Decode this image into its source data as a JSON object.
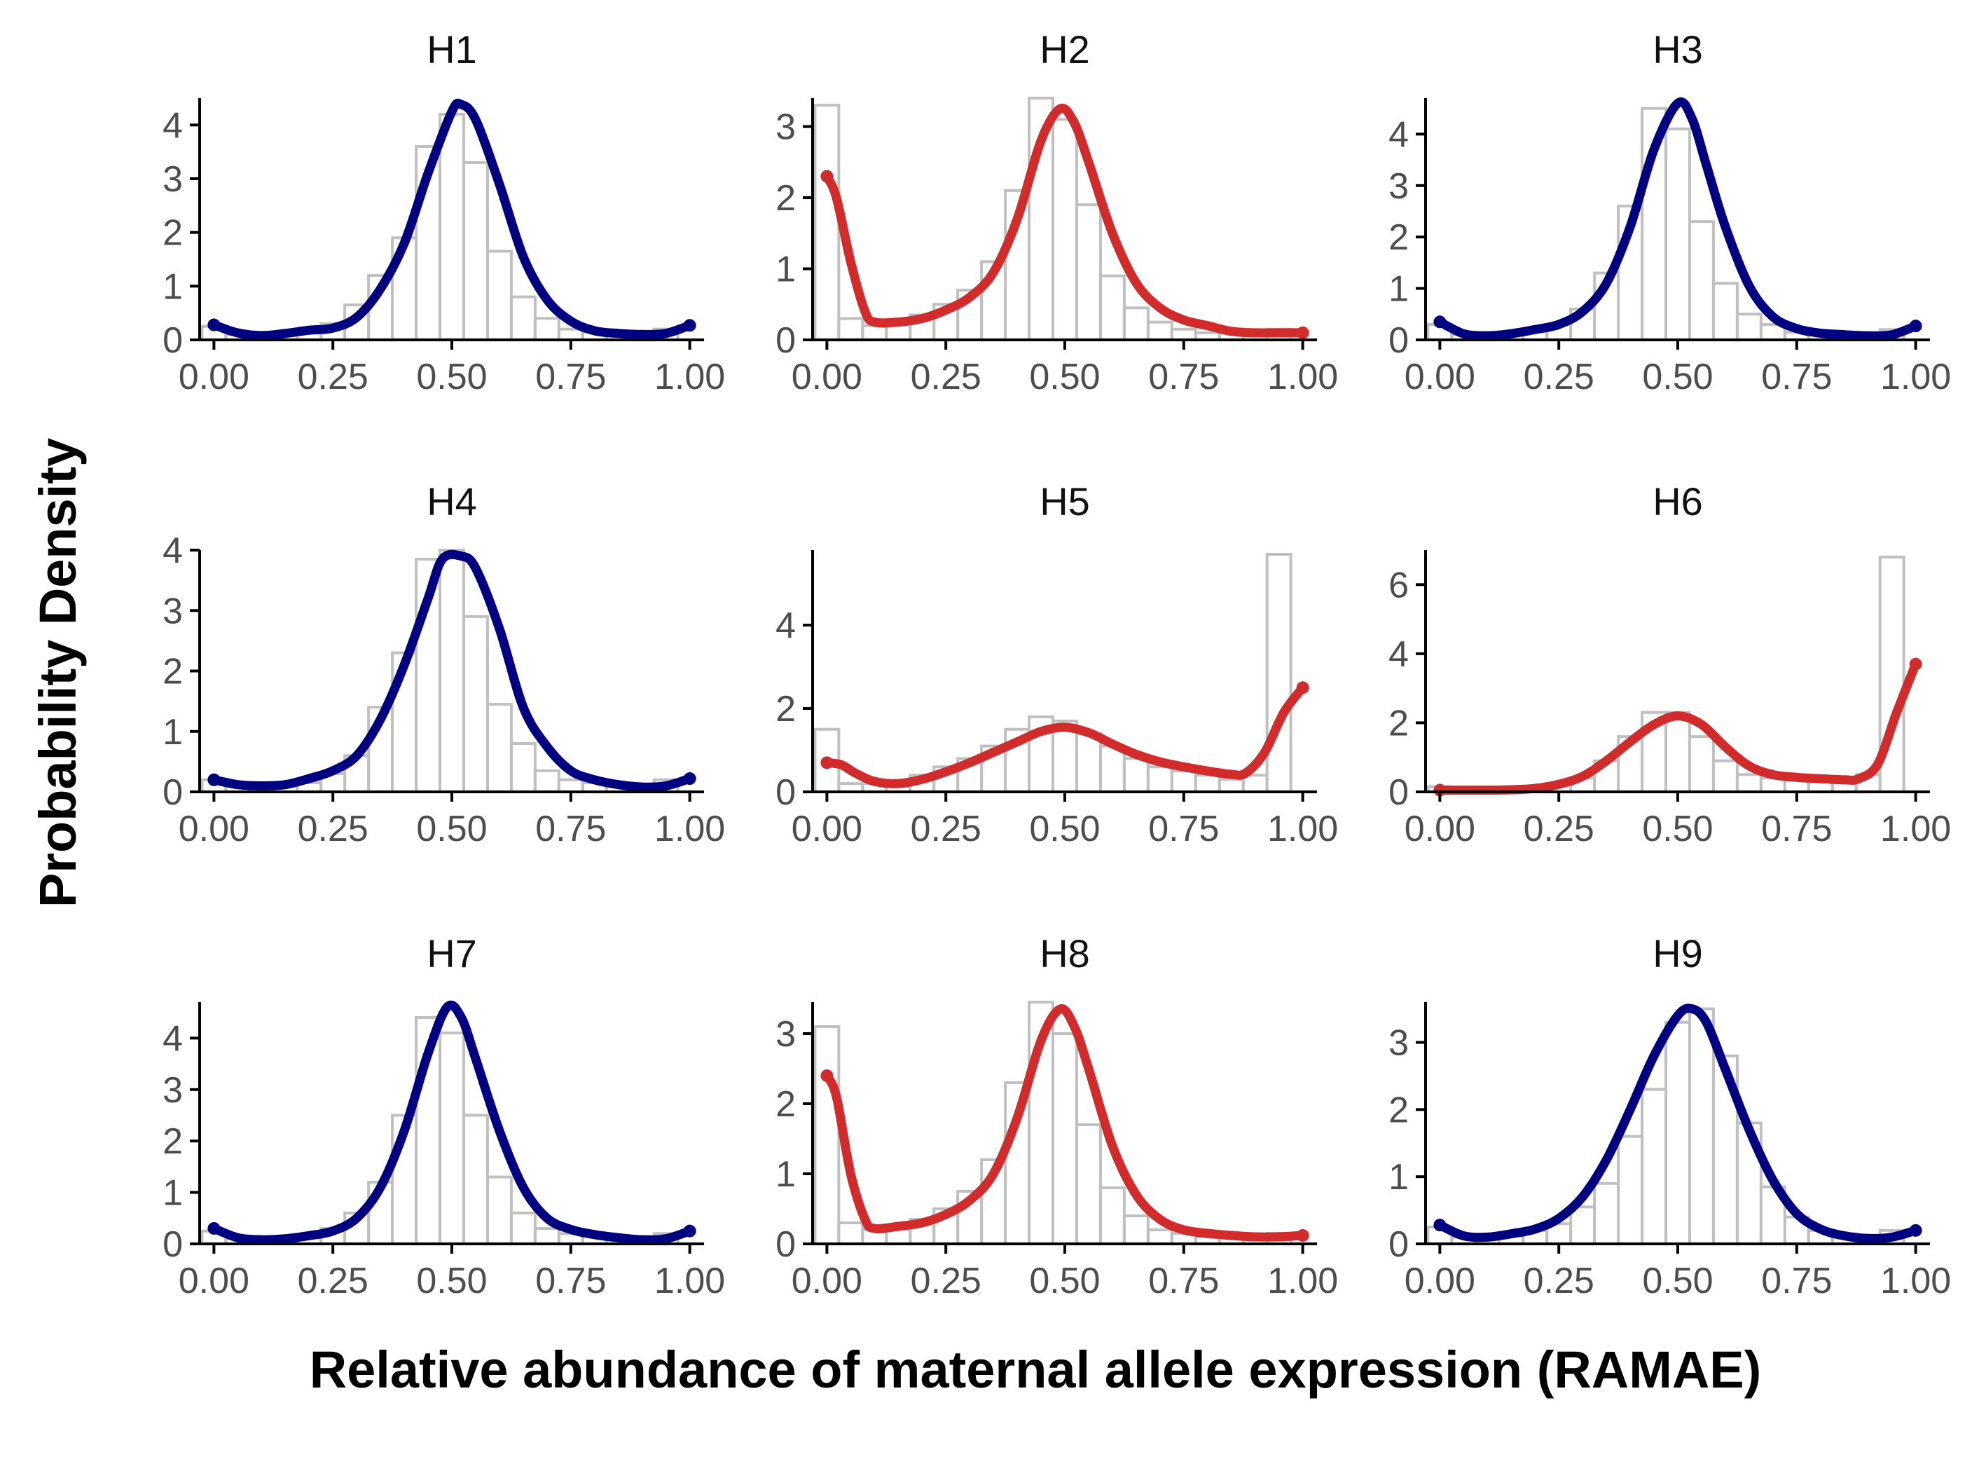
{
  "figure": {
    "xlabel": "Relative abundance of maternal allele expression (RAMAE)",
    "ylabel": "Probability Density"
  },
  "colors": {
    "normal": "#000080",
    "skewed": "#d22b2b",
    "histogram": "#c0c0c0",
    "axis": "#000000"
  },
  "chart_data": [
    {
      "type": "area",
      "title": "H1",
      "color": "normal",
      "x_ticks": [
        "0.00",
        "0.25",
        "0.50",
        "0.75",
        "1.00"
      ],
      "y_ticks": [
        0,
        1,
        2,
        3,
        4
      ],
      "xlim": [
        -0.03,
        1.03
      ],
      "ylim": [
        0,
        4.5
      ],
      "histogram": [
        0.25,
        0.1,
        0.1,
        0.15,
        0.2,
        0.3,
        0.65,
        1.2,
        1.9,
        3.6,
        4.2,
        3.3,
        1.65,
        0.8,
        0.4,
        0.2,
        0.15,
        0.1,
        0.1,
        0.2
      ],
      "density": [
        [
          0,
          0.28
        ],
        [
          0.05,
          0.13
        ],
        [
          0.1,
          0.08
        ],
        [
          0.15,
          0.12
        ],
        [
          0.2,
          0.18
        ],
        [
          0.25,
          0.22
        ],
        [
          0.3,
          0.42
        ],
        [
          0.35,
          0.95
        ],
        [
          0.4,
          1.8
        ],
        [
          0.45,
          3.1
        ],
        [
          0.5,
          4.25
        ],
        [
          0.52,
          4.38
        ],
        [
          0.55,
          4.1
        ],
        [
          0.6,
          2.9
        ],
        [
          0.65,
          1.55
        ],
        [
          0.7,
          0.75
        ],
        [
          0.75,
          0.35
        ],
        [
          0.8,
          0.17
        ],
        [
          0.85,
          0.12
        ],
        [
          0.9,
          0.1
        ],
        [
          0.95,
          0.12
        ],
        [
          1.0,
          0.27
        ]
      ]
    },
    {
      "type": "area",
      "title": "H4",
      "color": "normal",
      "x_ticks": [
        "0.00",
        "0.25",
        "0.50",
        "0.75",
        "1.00"
      ],
      "y_ticks": [
        0,
        1,
        2,
        3,
        4
      ],
      "xlim": [
        -0.03,
        1.03
      ],
      "ylim": [
        0,
        4.0
      ],
      "histogram": [
        0.2,
        0.1,
        0.1,
        0.1,
        0.15,
        0.3,
        0.6,
        1.4,
        2.3,
        3.85,
        4.0,
        2.9,
        1.45,
        0.8,
        0.35,
        0.2,
        0.15,
        0.1,
        0.1,
        0.2
      ],
      "density": [
        [
          0,
          0.2
        ],
        [
          0.05,
          0.12
        ],
        [
          0.1,
          0.1
        ],
        [
          0.15,
          0.12
        ],
        [
          0.2,
          0.22
        ],
        [
          0.25,
          0.35
        ],
        [
          0.3,
          0.6
        ],
        [
          0.35,
          1.2
        ],
        [
          0.4,
          2.1
        ],
        [
          0.45,
          3.2
        ],
        [
          0.48,
          3.85
        ],
        [
          0.52,
          3.9
        ],
        [
          0.55,
          3.7
        ],
        [
          0.6,
          2.7
        ],
        [
          0.65,
          1.4
        ],
        [
          0.7,
          0.75
        ],
        [
          0.75,
          0.35
        ],
        [
          0.8,
          0.2
        ],
        [
          0.85,
          0.12
        ],
        [
          0.9,
          0.08
        ],
        [
          0.95,
          0.1
        ],
        [
          1.0,
          0.22
        ]
      ]
    },
    {
      "type": "area",
      "title": "H7",
      "color": "normal",
      "x_ticks": [
        "0.00",
        "0.25",
        "0.50",
        "0.75",
        "1.00"
      ],
      "y_ticks": [
        0,
        1,
        2,
        3,
        4
      ],
      "xlim": [
        -0.03,
        1.03
      ],
      "ylim": [
        0,
        4.7
      ],
      "histogram": [
        0.25,
        0.1,
        0.1,
        0.1,
        0.15,
        0.3,
        0.6,
        1.2,
        2.5,
        4.4,
        4.1,
        2.5,
        1.3,
        0.6,
        0.3,
        0.2,
        0.15,
        0.1,
        0.1,
        0.2
      ],
      "density": [
        [
          0,
          0.3
        ],
        [
          0.05,
          0.12
        ],
        [
          0.1,
          0.08
        ],
        [
          0.15,
          0.1
        ],
        [
          0.2,
          0.16
        ],
        [
          0.25,
          0.25
        ],
        [
          0.3,
          0.5
        ],
        [
          0.35,
          1.1
        ],
        [
          0.4,
          2.2
        ],
        [
          0.45,
          3.7
        ],
        [
          0.49,
          4.6
        ],
        [
          0.52,
          4.4
        ],
        [
          0.55,
          3.6
        ],
        [
          0.6,
          2.2
        ],
        [
          0.65,
          1.1
        ],
        [
          0.7,
          0.5
        ],
        [
          0.75,
          0.28
        ],
        [
          0.8,
          0.18
        ],
        [
          0.85,
          0.12
        ],
        [
          0.9,
          0.08
        ],
        [
          0.95,
          0.1
        ],
        [
          1.0,
          0.25
        ]
      ]
    },
    {
      "type": "area",
      "title": "H2",
      "color": "skewed",
      "x_ticks": [
        "0.00",
        "0.25",
        "0.50",
        "0.75",
        "1.00"
      ],
      "y_ticks": [
        0,
        1,
        2,
        3
      ],
      "xlim": [
        -0.03,
        1.03
      ],
      "ylim": [
        0,
        3.4
      ],
      "histogram": [
        3.3,
        0.3,
        0.2,
        0.25,
        0.35,
        0.5,
        0.7,
        1.1,
        2.1,
        3.4,
        3.1,
        1.9,
        0.9,
        0.45,
        0.25,
        0.15,
        0.1,
        0.1,
        0.1,
        0.15
      ],
      "density": [
        [
          0,
          2.3
        ],
        [
          0.02,
          2.0
        ],
        [
          0.05,
          1.1
        ],
        [
          0.08,
          0.4
        ],
        [
          0.1,
          0.25
        ],
        [
          0.15,
          0.25
        ],
        [
          0.2,
          0.3
        ],
        [
          0.25,
          0.42
        ],
        [
          0.3,
          0.6
        ],
        [
          0.35,
          0.95
        ],
        [
          0.4,
          1.7
        ],
        [
          0.45,
          2.8
        ],
        [
          0.49,
          3.25
        ],
        [
          0.52,
          3.05
        ],
        [
          0.55,
          2.5
        ],
        [
          0.6,
          1.5
        ],
        [
          0.65,
          0.8
        ],
        [
          0.7,
          0.45
        ],
        [
          0.75,
          0.28
        ],
        [
          0.8,
          0.2
        ],
        [
          0.85,
          0.12
        ],
        [
          0.9,
          0.1
        ],
        [
          0.95,
          0.1
        ],
        [
          1.0,
          0.1
        ]
      ]
    },
    {
      "type": "area",
      "title": "H5",
      "color": "skewed",
      "x_ticks": [
        "0.00",
        "0.25",
        "0.50",
        "0.75",
        "1.00"
      ],
      "y_ticks": [
        0,
        2,
        4
      ],
      "xlim": [
        -0.03,
        1.03
      ],
      "ylim": [
        0,
        5.8
      ],
      "histogram": [
        1.5,
        0.2,
        0.2,
        0.25,
        0.4,
        0.6,
        0.8,
        1.1,
        1.5,
        1.8,
        1.7,
        1.4,
        1.1,
        0.8,
        0.6,
        0.5,
        0.4,
        0.3,
        0.4,
        5.7
      ],
      "density": [
        [
          0,
          0.7
        ],
        [
          0.03,
          0.65
        ],
        [
          0.06,
          0.45
        ],
        [
          0.1,
          0.25
        ],
        [
          0.15,
          0.2
        ],
        [
          0.2,
          0.3
        ],
        [
          0.25,
          0.48
        ],
        [
          0.3,
          0.7
        ],
        [
          0.35,
          0.95
        ],
        [
          0.4,
          1.2
        ],
        [
          0.45,
          1.45
        ],
        [
          0.5,
          1.55
        ],
        [
          0.55,
          1.42
        ],
        [
          0.6,
          1.15
        ],
        [
          0.65,
          0.9
        ],
        [
          0.7,
          0.72
        ],
        [
          0.75,
          0.6
        ],
        [
          0.8,
          0.5
        ],
        [
          0.85,
          0.42
        ],
        [
          0.88,
          0.45
        ],
        [
          0.92,
          0.95
        ],
        [
          0.96,
          1.9
        ],
        [
          1.0,
          2.5
        ]
      ]
    },
    {
      "type": "area",
      "title": "H8",
      "color": "skewed",
      "x_ticks": [
        "0.00",
        "0.25",
        "0.50",
        "0.75",
        "1.00"
      ],
      "y_ticks": [
        0,
        1,
        2,
        3
      ],
      "xlim": [
        -0.03,
        1.03
      ],
      "ylim": [
        0,
        3.45
      ],
      "histogram": [
        3.1,
        0.3,
        0.2,
        0.25,
        0.35,
        0.5,
        0.75,
        1.2,
        2.3,
        3.45,
        3.0,
        1.7,
        0.8,
        0.4,
        0.2,
        0.15,
        0.1,
        0.1,
        0.1,
        0.15
      ],
      "density": [
        [
          0,
          2.4
        ],
        [
          0.02,
          2.1
        ],
        [
          0.05,
          1.0
        ],
        [
          0.08,
          0.35
        ],
        [
          0.1,
          0.22
        ],
        [
          0.15,
          0.25
        ],
        [
          0.2,
          0.3
        ],
        [
          0.25,
          0.42
        ],
        [
          0.3,
          0.62
        ],
        [
          0.35,
          1.0
        ],
        [
          0.4,
          1.8
        ],
        [
          0.45,
          2.9
        ],
        [
          0.49,
          3.35
        ],
        [
          0.52,
          3.1
        ],
        [
          0.55,
          2.5
        ],
        [
          0.6,
          1.4
        ],
        [
          0.65,
          0.7
        ],
        [
          0.7,
          0.35
        ],
        [
          0.75,
          0.2
        ],
        [
          0.8,
          0.15
        ],
        [
          0.85,
          0.12
        ],
        [
          0.9,
          0.1
        ],
        [
          0.95,
          0.1
        ],
        [
          1.0,
          0.12
        ]
      ]
    },
    {
      "type": "area",
      "title": "H3",
      "color": "normal",
      "x_ticks": [
        "0.00",
        "0.25",
        "0.50",
        "0.75",
        "1.00"
      ],
      "y_ticks": [
        0,
        1,
        2,
        3,
        4
      ],
      "xlim": [
        -0.03,
        1.03
      ],
      "ylim": [
        0,
        4.7
      ],
      "histogram": [
        0.3,
        0.1,
        0.1,
        0.1,
        0.2,
        0.3,
        0.6,
        1.3,
        2.6,
        4.5,
        4.1,
        2.3,
        1.1,
        0.5,
        0.3,
        0.15,
        0.1,
        0.1,
        0.1,
        0.2
      ],
      "density": [
        [
          0,
          0.35
        ],
        [
          0.05,
          0.12
        ],
        [
          0.1,
          0.08
        ],
        [
          0.15,
          0.12
        ],
        [
          0.2,
          0.2
        ],
        [
          0.25,
          0.3
        ],
        [
          0.3,
          0.55
        ],
        [
          0.35,
          1.1
        ],
        [
          0.4,
          2.2
        ],
        [
          0.45,
          3.7
        ],
        [
          0.5,
          4.6
        ],
        [
          0.53,
          4.3
        ],
        [
          0.56,
          3.4
        ],
        [
          0.6,
          2.2
        ],
        [
          0.65,
          1.05
        ],
        [
          0.7,
          0.45
        ],
        [
          0.75,
          0.22
        ],
        [
          0.8,
          0.13
        ],
        [
          0.85,
          0.1
        ],
        [
          0.9,
          0.08
        ],
        [
          0.95,
          0.1
        ],
        [
          1.0,
          0.27
        ]
      ]
    },
    {
      "type": "area",
      "title": "H6",
      "color": "skewed",
      "x_ticks": [
        "0.00",
        "0.25",
        "0.50",
        "0.75",
        "1.00"
      ],
      "y_ticks": [
        0,
        2,
        4,
        6
      ],
      "xlim": [
        -0.03,
        1.03
      ],
      "ylim": [
        0,
        7.0
      ],
      "histogram": [
        0.15,
        0.05,
        0.05,
        0.05,
        0.1,
        0.2,
        0.4,
        0.9,
        1.6,
        2.3,
        2.3,
        1.6,
        0.9,
        0.5,
        0.4,
        0.35,
        0.35,
        0.35,
        0.5,
        6.8
      ],
      "density": [
        [
          0,
          0.05
        ],
        [
          0.1,
          0.05
        ],
        [
          0.15,
          0.06
        ],
        [
          0.2,
          0.1
        ],
        [
          0.25,
          0.22
        ],
        [
          0.3,
          0.45
        ],
        [
          0.35,
          0.9
        ],
        [
          0.4,
          1.45
        ],
        [
          0.45,
          1.95
        ],
        [
          0.5,
          2.2
        ],
        [
          0.55,
          1.95
        ],
        [
          0.6,
          1.3
        ],
        [
          0.65,
          0.75
        ],
        [
          0.7,
          0.5
        ],
        [
          0.75,
          0.42
        ],
        [
          0.8,
          0.38
        ],
        [
          0.85,
          0.35
        ],
        [
          0.88,
          0.38
        ],
        [
          0.92,
          0.8
        ],
        [
          0.96,
          2.3
        ],
        [
          1.0,
          3.7
        ]
      ]
    },
    {
      "type": "area",
      "title": "H9",
      "color": "normal",
      "x_ticks": [
        "0.00",
        "0.25",
        "0.50",
        "0.75",
        "1.00"
      ],
      "y_ticks": [
        0,
        1,
        2,
        3
      ],
      "xlim": [
        -0.03,
        1.03
      ],
      "ylim": [
        0,
        3.6
      ],
      "histogram": [
        0.25,
        0.1,
        0.1,
        0.15,
        0.2,
        0.3,
        0.55,
        0.9,
        1.6,
        2.3,
        3.3,
        3.5,
        2.8,
        1.8,
        0.85,
        0.4,
        0.2,
        0.15,
        0.1,
        0.2
      ],
      "density": [
        [
          0,
          0.28
        ],
        [
          0.05,
          0.12
        ],
        [
          0.1,
          0.1
        ],
        [
          0.15,
          0.15
        ],
        [
          0.2,
          0.22
        ],
        [
          0.25,
          0.38
        ],
        [
          0.3,
          0.7
        ],
        [
          0.35,
          1.25
        ],
        [
          0.4,
          2.0
        ],
        [
          0.45,
          2.8
        ],
        [
          0.5,
          3.4
        ],
        [
          0.53,
          3.5
        ],
        [
          0.56,
          3.3
        ],
        [
          0.6,
          2.6
        ],
        [
          0.65,
          1.7
        ],
        [
          0.7,
          0.95
        ],
        [
          0.75,
          0.45
        ],
        [
          0.8,
          0.22
        ],
        [
          0.85,
          0.12
        ],
        [
          0.9,
          0.08
        ],
        [
          0.95,
          0.1
        ],
        [
          1.0,
          0.2
        ]
      ]
    }
  ]
}
